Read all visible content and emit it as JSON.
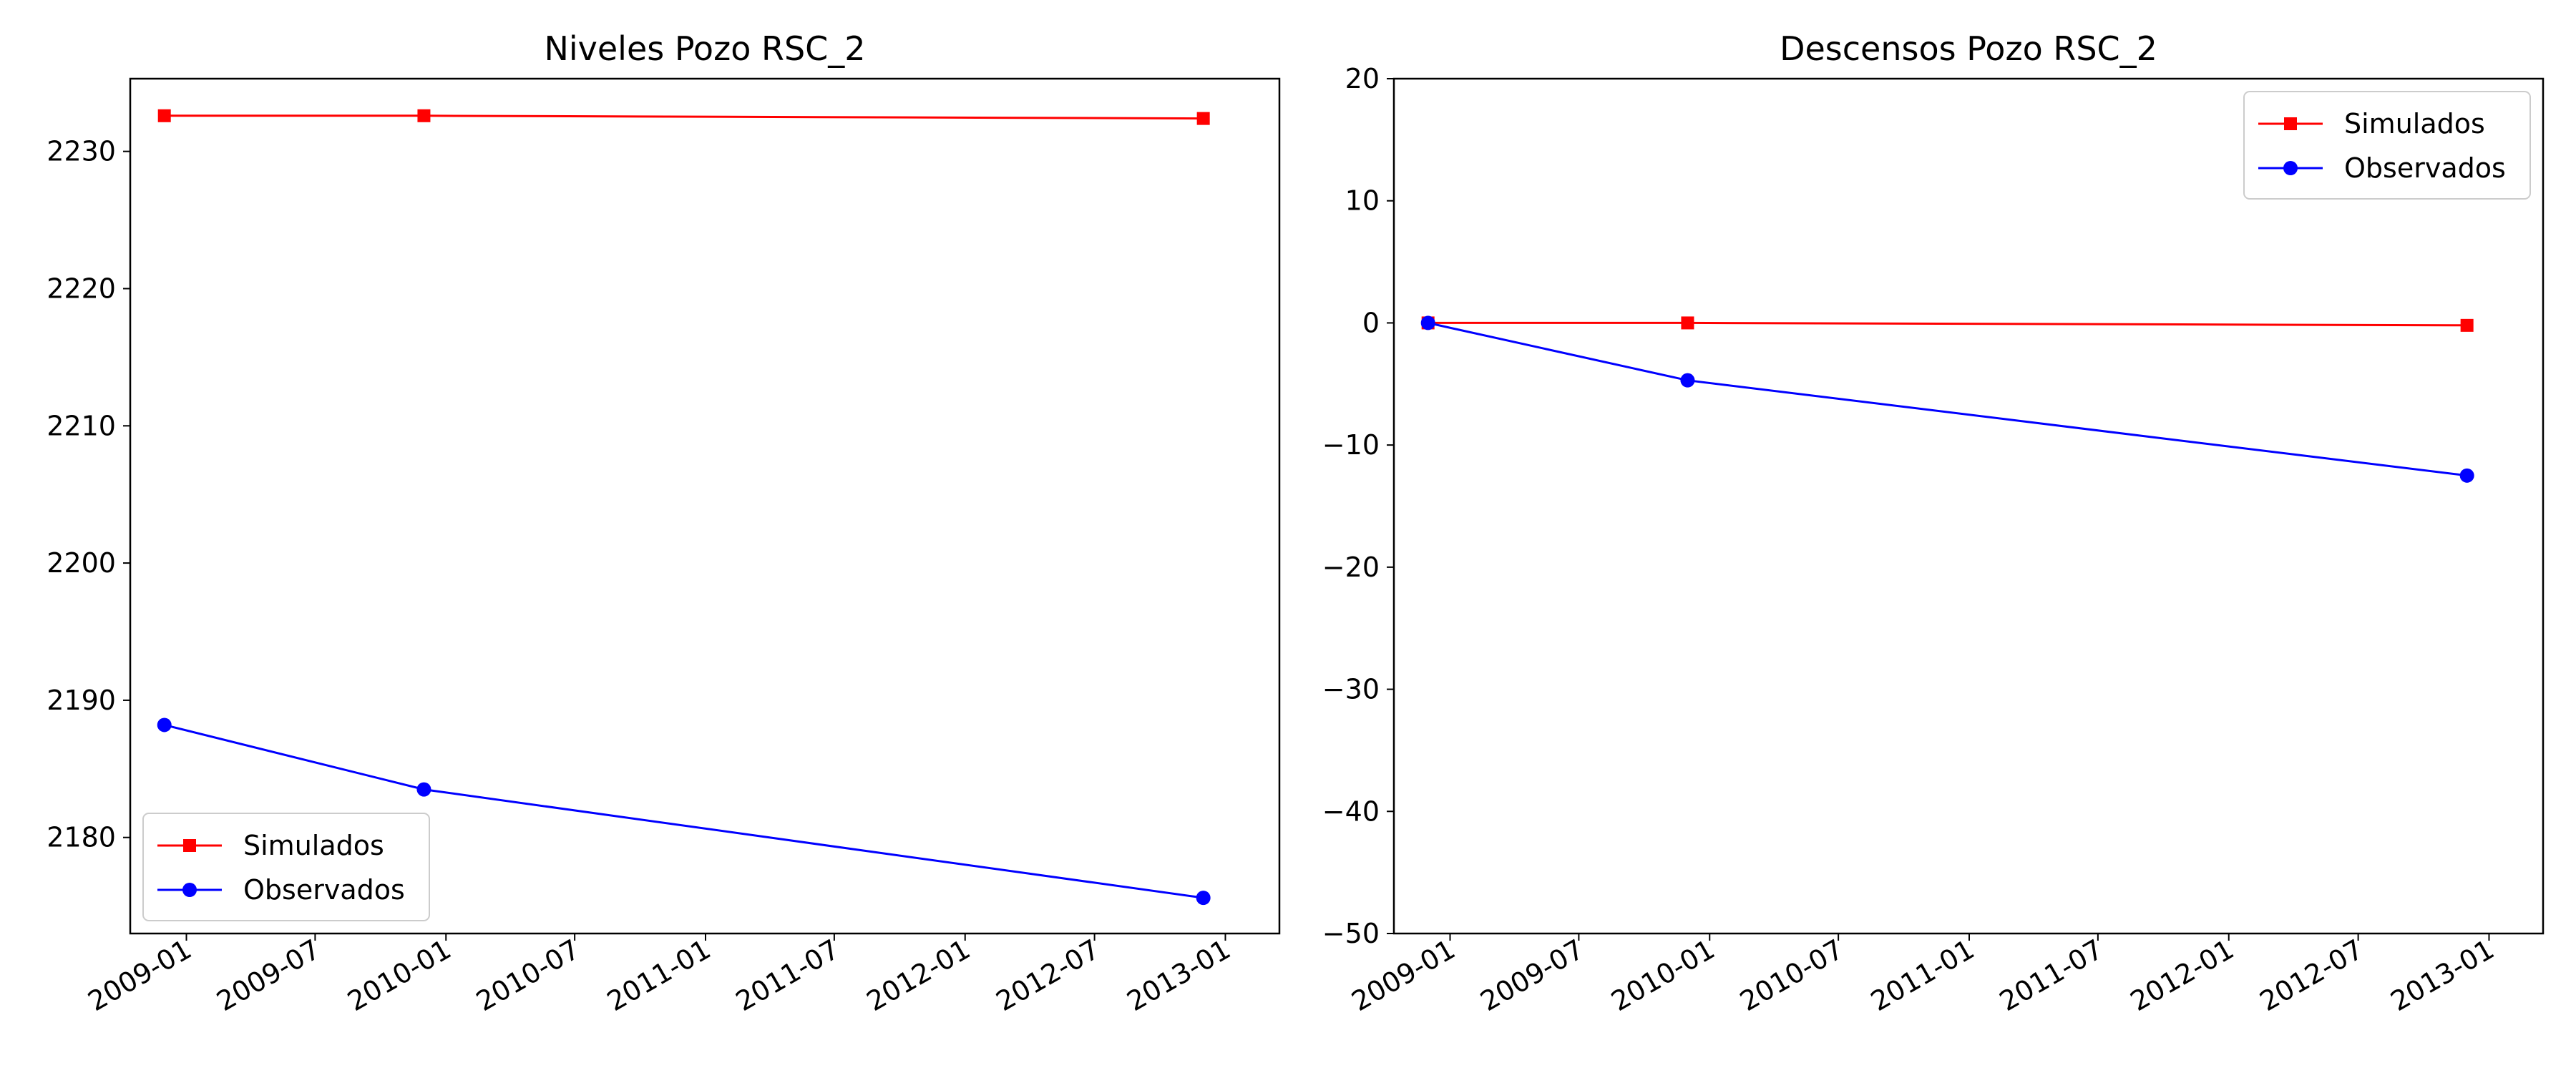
{
  "chart_data": [
    {
      "type": "line",
      "title": "Niveles Pozo RSC_2",
      "xlabel": "",
      "ylabel": "",
      "x_axis_type": "date",
      "xlim": [
        "2008-10-14",
        "2013-03-18"
      ],
      "ylim": [
        2173.0,
        2235.3
      ],
      "xticks": [
        "2009-01-01",
        "2009-07-01",
        "2010-01-01",
        "2010-07-01",
        "2011-01-01",
        "2011-07-01",
        "2012-01-01",
        "2012-07-01",
        "2013-01-01"
      ],
      "xtick_labels": [
        "2009-01",
        "2009-07",
        "2010-01",
        "2010-07",
        "2011-01",
        "2011-07",
        "2012-01",
        "2012-07",
        "2013-01"
      ],
      "yticks": [
        2180,
        2190,
        2200,
        2210,
        2220,
        2230
      ],
      "ytick_labels": [
        "2180",
        "2190",
        "2200",
        "2210",
        "2220",
        "2230"
      ],
      "grid": false,
      "legend_position": "lower-left",
      "series": [
        {
          "name": "Simulados",
          "color": "#ff0000",
          "marker": "square",
          "x": [
            "2008-12-01",
            "2009-12-01",
            "2012-12-01"
          ],
          "y": [
            2232.6,
            2232.6,
            2232.4
          ]
        },
        {
          "name": "Observados",
          "color": "#0000ff",
          "marker": "circle",
          "x": [
            "2008-12-01",
            "2009-12-01",
            "2012-12-01"
          ],
          "y": [
            2188.2,
            2183.5,
            2175.6
          ]
        }
      ]
    },
    {
      "type": "line",
      "title": "Descensos Pozo RSC_2",
      "xlabel": "",
      "ylabel": "",
      "x_axis_type": "date",
      "xlim": [
        "2008-10-14",
        "2013-03-18"
      ],
      "ylim": [
        -50,
        20
      ],
      "xticks": [
        "2009-01-01",
        "2009-07-01",
        "2010-01-01",
        "2010-07-01",
        "2011-01-01",
        "2011-07-01",
        "2012-01-01",
        "2012-07-01",
        "2013-01-01"
      ],
      "xtick_labels": [
        "2009-01",
        "2009-07",
        "2010-01",
        "2010-07",
        "2011-01",
        "2011-07",
        "2012-01",
        "2012-07",
        "2013-01"
      ],
      "yticks": [
        -50,
        -40,
        -30,
        -20,
        -10,
        0,
        10,
        20
      ],
      "ytick_labels": [
        "−50",
        "−40",
        "−30",
        "−20",
        "−10",
        "0",
        "10",
        "20"
      ],
      "grid": false,
      "legend_position": "upper-right",
      "series": [
        {
          "name": "Simulados",
          "color": "#ff0000",
          "marker": "square",
          "x": [
            "2008-12-01",
            "2009-12-01",
            "2012-12-01"
          ],
          "y": [
            0.0,
            0.0,
            -0.2
          ]
        },
        {
          "name": "Observados",
          "color": "#0000ff",
          "marker": "circle",
          "x": [
            "2008-12-01",
            "2009-12-01",
            "2012-12-01"
          ],
          "y": [
            0.0,
            -4.7,
            -12.5
          ]
        }
      ]
    }
  ]
}
